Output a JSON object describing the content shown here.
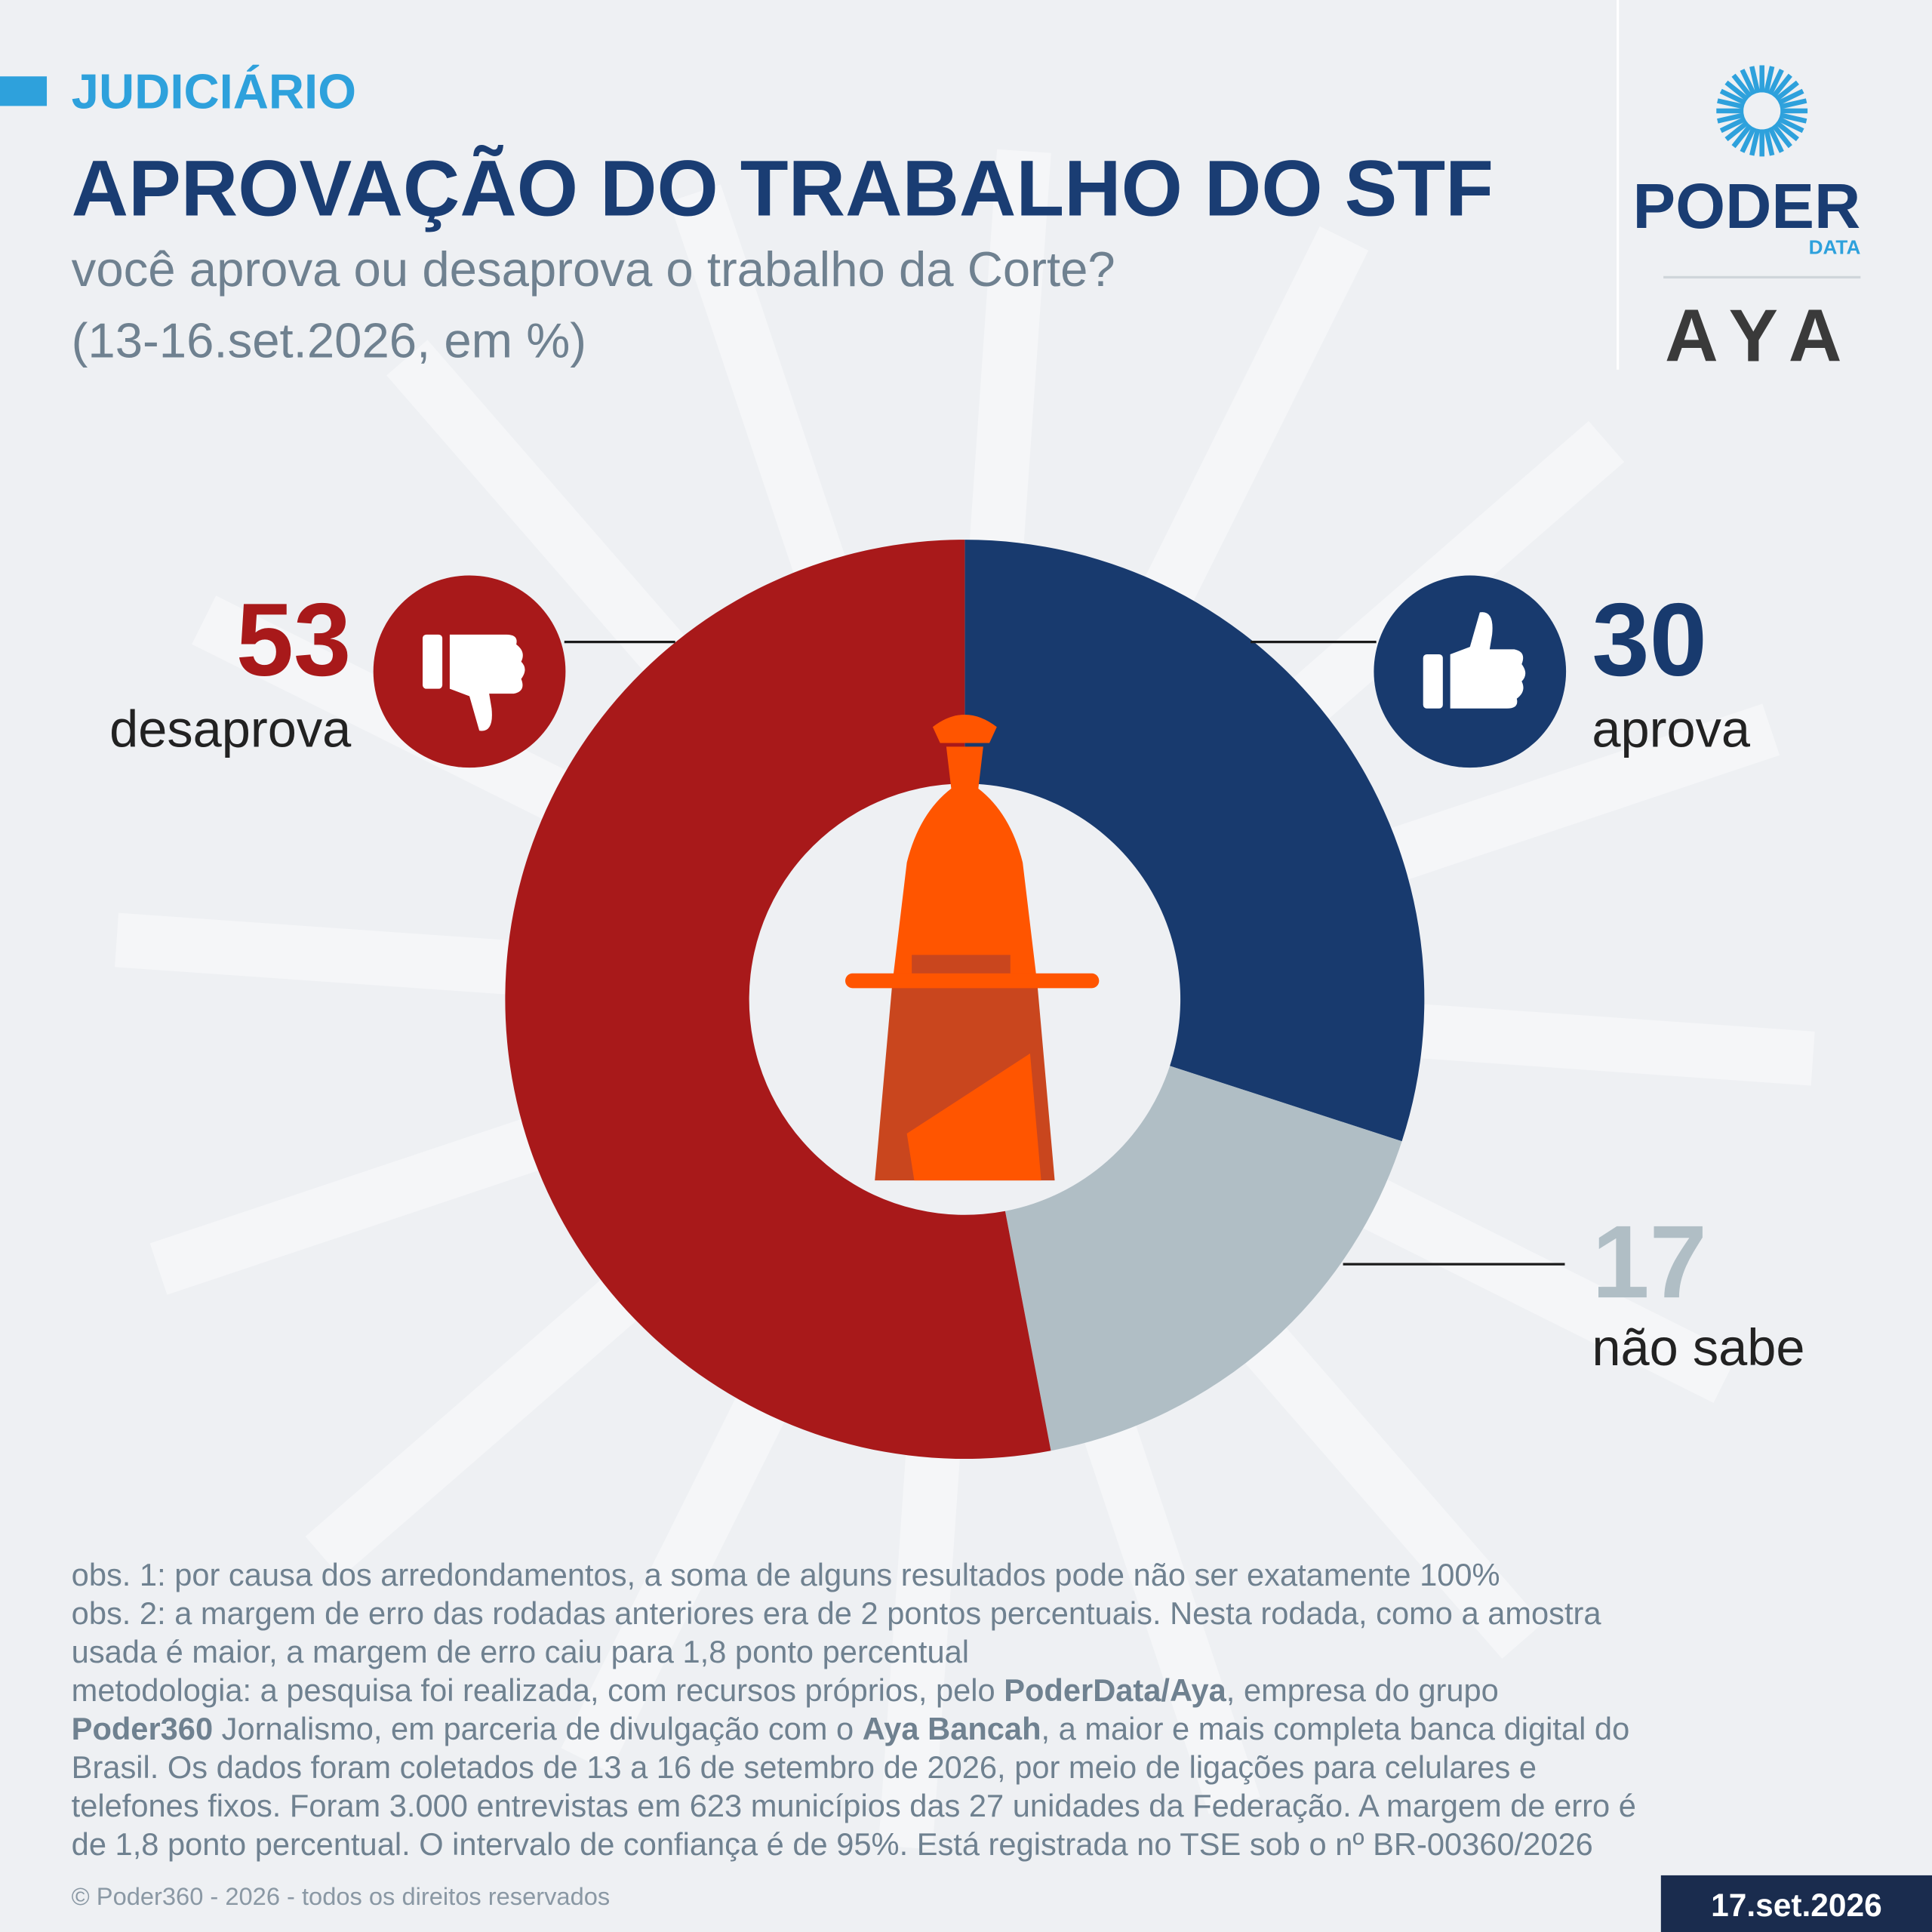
{
  "section": "JUDICIÁRIO",
  "chart_data": {
    "type": "donut",
    "title": "APROVAÇÃO DO TRABALHO DO STF",
    "subtitle": [
      "você aprova ou desaprova o trabalho da Corte?",
      "(13-16.set.2026, em %)"
    ],
    "categories": [
      "aprova",
      "não sabe",
      "desaprova"
    ],
    "values": [
      30,
      17,
      53
    ],
    "colors": [
      "#183a6e",
      "#b0bec5",
      "#a8191a"
    ]
  },
  "notes": [
    [
      "obs. 1: por causa dos arredondamentos, a soma de alguns resultados pode não ser exatamente 100%"
    ],
    [
      "obs. 2: a margem de erro das rodadas anteriores era de 2 pontos percentuais. Nesta rodada, como a amostra"
    ],
    [
      "usada é maior, a margem de erro caiu para 1,8 ponto percentual"
    ],
    [
      "metodologia: a pesquisa foi realizada, com recursos próprios, pelo ",
      "PoderData/Aya",
      ", empresa do grupo"
    ],
    [
      "",
      "Poder360",
      " Jornalismo, em parceria de divulgação com o ",
      "Aya Bancah",
      ", a maior e mais completa banca digital do"
    ],
    [
      "Brasil. Os dados foram coletados de 13 a 16 de setembro de 2026, por meio de ligações para celulares e"
    ],
    [
      "telefones fixos. Foram 3.000 entrevistas em 623 municípios das 27 unidades da Federação. A margem de erro é"
    ],
    [
      "de 1,8 ponto percentual. O intervalo de confiança é de 95%. Está registrada no TSE sob o nº BR-00360/2026"
    ]
  ],
  "copyright": "© Poder360 - 2026 - todos os direitos reservados",
  "date": "17.set.2026",
  "logo": {
    "name": "PODER",
    "sub": "DATA",
    "partner": "AYA"
  }
}
